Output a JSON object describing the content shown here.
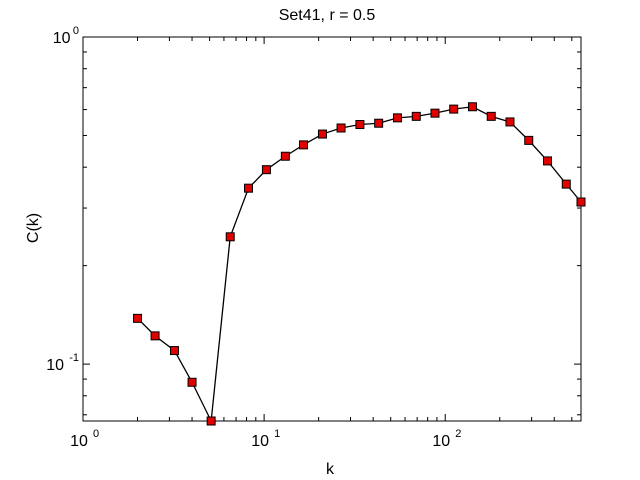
{
  "chart_data": {
    "type": "line",
    "title": "Set41, r = 0.5",
    "xlabel": "k",
    "ylabel": "C(k)",
    "xscale": "log",
    "yscale": "log",
    "xlim": [
      1,
      562
    ],
    "ylim": [
      0.067,
      1
    ],
    "grid": false,
    "legend": "none",
    "x_ticks": [
      {
        "base": "10",
        "exp": "0",
        "value": 1
      },
      {
        "base": "10",
        "exp": "1",
        "value": 10
      },
      {
        "base": "10",
        "exp": "2",
        "value": 100
      }
    ],
    "y_ticks": [
      {
        "base": "10",
        "exp": "-1",
        "value": 0.1
      },
      {
        "base": "10",
        "exp": "0",
        "value": 1
      }
    ],
    "series": [
      {
        "line_color": "#000000",
        "marker": "square",
        "marker_color": "#e00000",
        "x": [
          2,
          2.5,
          3.2,
          4,
          5.1,
          6.5,
          8.2,
          10.3,
          13.1,
          16.5,
          21,
          26.6,
          33.8,
          42.9,
          54.5,
          69.2,
          87.8,
          111.4,
          141.4,
          179.5,
          227.8,
          289.2,
          367.1,
          465.9,
          562
        ],
        "y": [
          0.138,
          0.122,
          0.11,
          0.088,
          0.067,
          0.245,
          0.345,
          0.393,
          0.432,
          0.468,
          0.505,
          0.527,
          0.54,
          0.545,
          0.566,
          0.572,
          0.585,
          0.602,
          0.612,
          0.572,
          0.55,
          0.483,
          0.418,
          0.355,
          0.313
        ]
      }
    ]
  }
}
